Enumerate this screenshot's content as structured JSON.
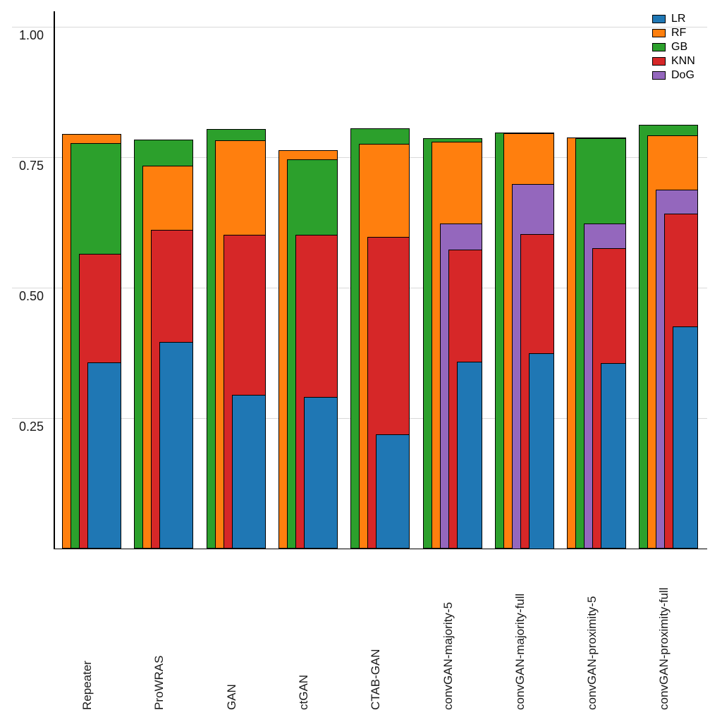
{
  "chart_data": {
    "type": "bar",
    "variant": "nested-overlay-bars-right-aligned-width-by-rank",
    "title": "",
    "xlabel": "",
    "ylabel": "",
    "categories": [
      "Repeater",
      "ProWRAS",
      "GAN",
      "ctGAN",
      "CTAB-GAN",
      "convGAN-majority-5",
      "convGAN-majority-full",
      "convGAN-proximity-5",
      "convGAN-proximity-full"
    ],
    "series": [
      {
        "name": "LR",
        "color": "#1f77b4",
        "values": [
          0.357,
          0.397,
          0.295,
          0.291,
          0.22,
          0.359,
          0.375,
          0.356,
          0.426
        ]
      },
      {
        "name": "RF",
        "color": "#ff7f0e",
        "values": [
          0.795,
          0.735,
          0.783,
          0.764,
          0.777,
          0.78,
          0.797,
          0.789,
          0.793
        ]
      },
      {
        "name": "GB",
        "color": "#2ca02c",
        "values": [
          0.778,
          0.785,
          0.805,
          0.747,
          0.806,
          0.787,
          0.798,
          0.787,
          0.813
        ]
      },
      {
        "name": "KNN",
        "color": "#d62728",
        "values": [
          0.565,
          0.612,
          0.602,
          0.602,
          0.598,
          0.574,
          0.604,
          0.576,
          0.643
        ]
      },
      {
        "name": "DoG",
        "color": "#9467bd",
        "values": [
          null,
          null,
          null,
          null,
          null,
          0.624,
          0.7,
          0.623,
          0.688
        ]
      }
    ],
    "ylim": [
      0,
      1.03
    ],
    "yticks": [
      0.25,
      0.5,
      0.75,
      1.0
    ],
    "ytick_labels": [
      "0.25",
      "0.50",
      "0.75",
      "1.00"
    ],
    "grid": "horizontal",
    "gridline_color": "#d9d9d9",
    "bar_edge_color": "#000000",
    "legend_position": "top-right",
    "legend": [
      "LR",
      "RF",
      "GB",
      "KNN",
      "DoG"
    ]
  }
}
